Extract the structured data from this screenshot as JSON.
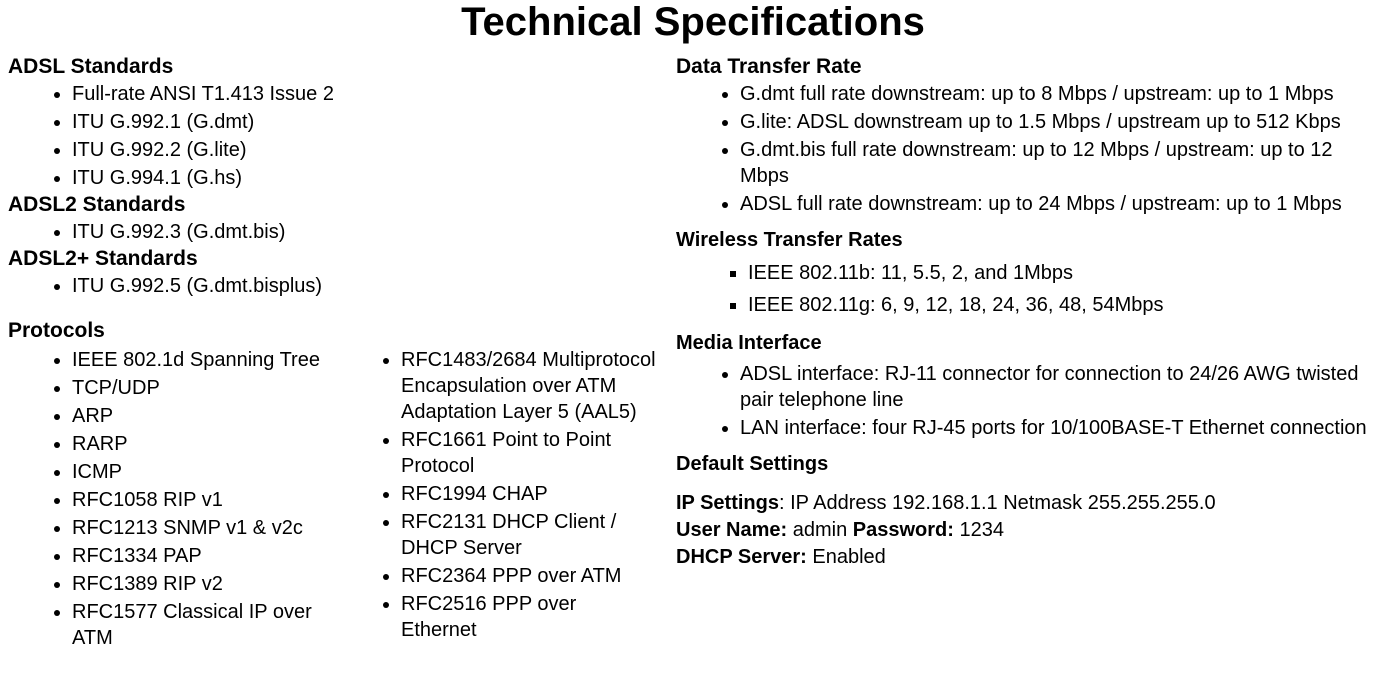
{
  "title": "Technical Specifications",
  "left": {
    "adsl_heading": "ADSL Standards",
    "adsl_items": [
      "Full-rate ANSI T1.413 Issue 2",
      "ITU G.992.1 (G.dmt)",
      "ITU G.992.2 (G.lite)",
      "ITU G.994.1 (G.hs)"
    ],
    "adsl2_heading": "ADSL2 Standards",
    "adsl2_items": [
      "ITU G.992.3 (G.dmt.bis)"
    ],
    "adsl2p_heading": "ADSL2+ Standards",
    "adsl2p_items": [
      "ITU G.992.5 (G.dmt.bisplus)"
    ],
    "protocols_heading": "Protocols",
    "protocols_col1": [
      "IEEE 802.1d Spanning Tree",
      "TCP/UDP",
      "ARP",
      "RARP",
      "ICMP",
      "RFC1058 RIP v1",
      "RFC1213 SNMP v1 & v2c",
      "RFC1334 PAP",
      "RFC1389 RIP v2",
      "RFC1577 Classical IP over ATM"
    ],
    "protocols_col2": [
      "RFC1483/2684 Multiprotocol Encapsulation over ATM Adaptation Layer 5 (AAL5)",
      "RFC1661 Point to Point Protocol",
      "RFC1994 CHAP",
      "RFC2131 DHCP Client / DHCP Server",
      "RFC2364 PPP over ATM",
      "RFC2516 PPP over Ethernet"
    ]
  },
  "right": {
    "dtr_heading": "Data Transfer Rate",
    "dtr_items": [
      "G.dmt full rate downstream: up to 8 Mbps / upstream: up to 1 Mbps",
      "G.lite: ADSL downstream up to 1.5 Mbps / upstream up to 512 Kbps",
      "G.dmt.bis full rate downstream: up to 12 Mbps / upstream: up to 12 Mbps",
      "ADSL full rate downstream: up to 24 Mbps / upstream: up to 1 Mbps"
    ],
    "wtr_heading": "Wireless Transfer Rates",
    "wtr_items": [
      "IEEE 802.11b: 11, 5.5, 2, and 1Mbps",
      "IEEE 802.11g: 6, 9, 12, 18, 24, 36, 48, 54Mbps"
    ],
    "media_heading": "Media Interface",
    "media_items": [
      "ADSL interface: RJ-11 connector for connection to 24/26 AWG twisted pair telephone line",
      "LAN interface: four RJ-45 ports for 10/100BASE-T Ethernet connection"
    ],
    "defaults_heading": "Default Settings",
    "ip_label": "IP Settings",
    "ip_value": ": IP Address 192.168.1.1 Netmask 255.255.255.0",
    "user_label": "User Name:",
    "user_value": " admin ",
    "pass_label": "Password:",
    "pass_value": " 1234",
    "dhcp_label": "DHCP Server:",
    "dhcp_value": " Enabled"
  }
}
